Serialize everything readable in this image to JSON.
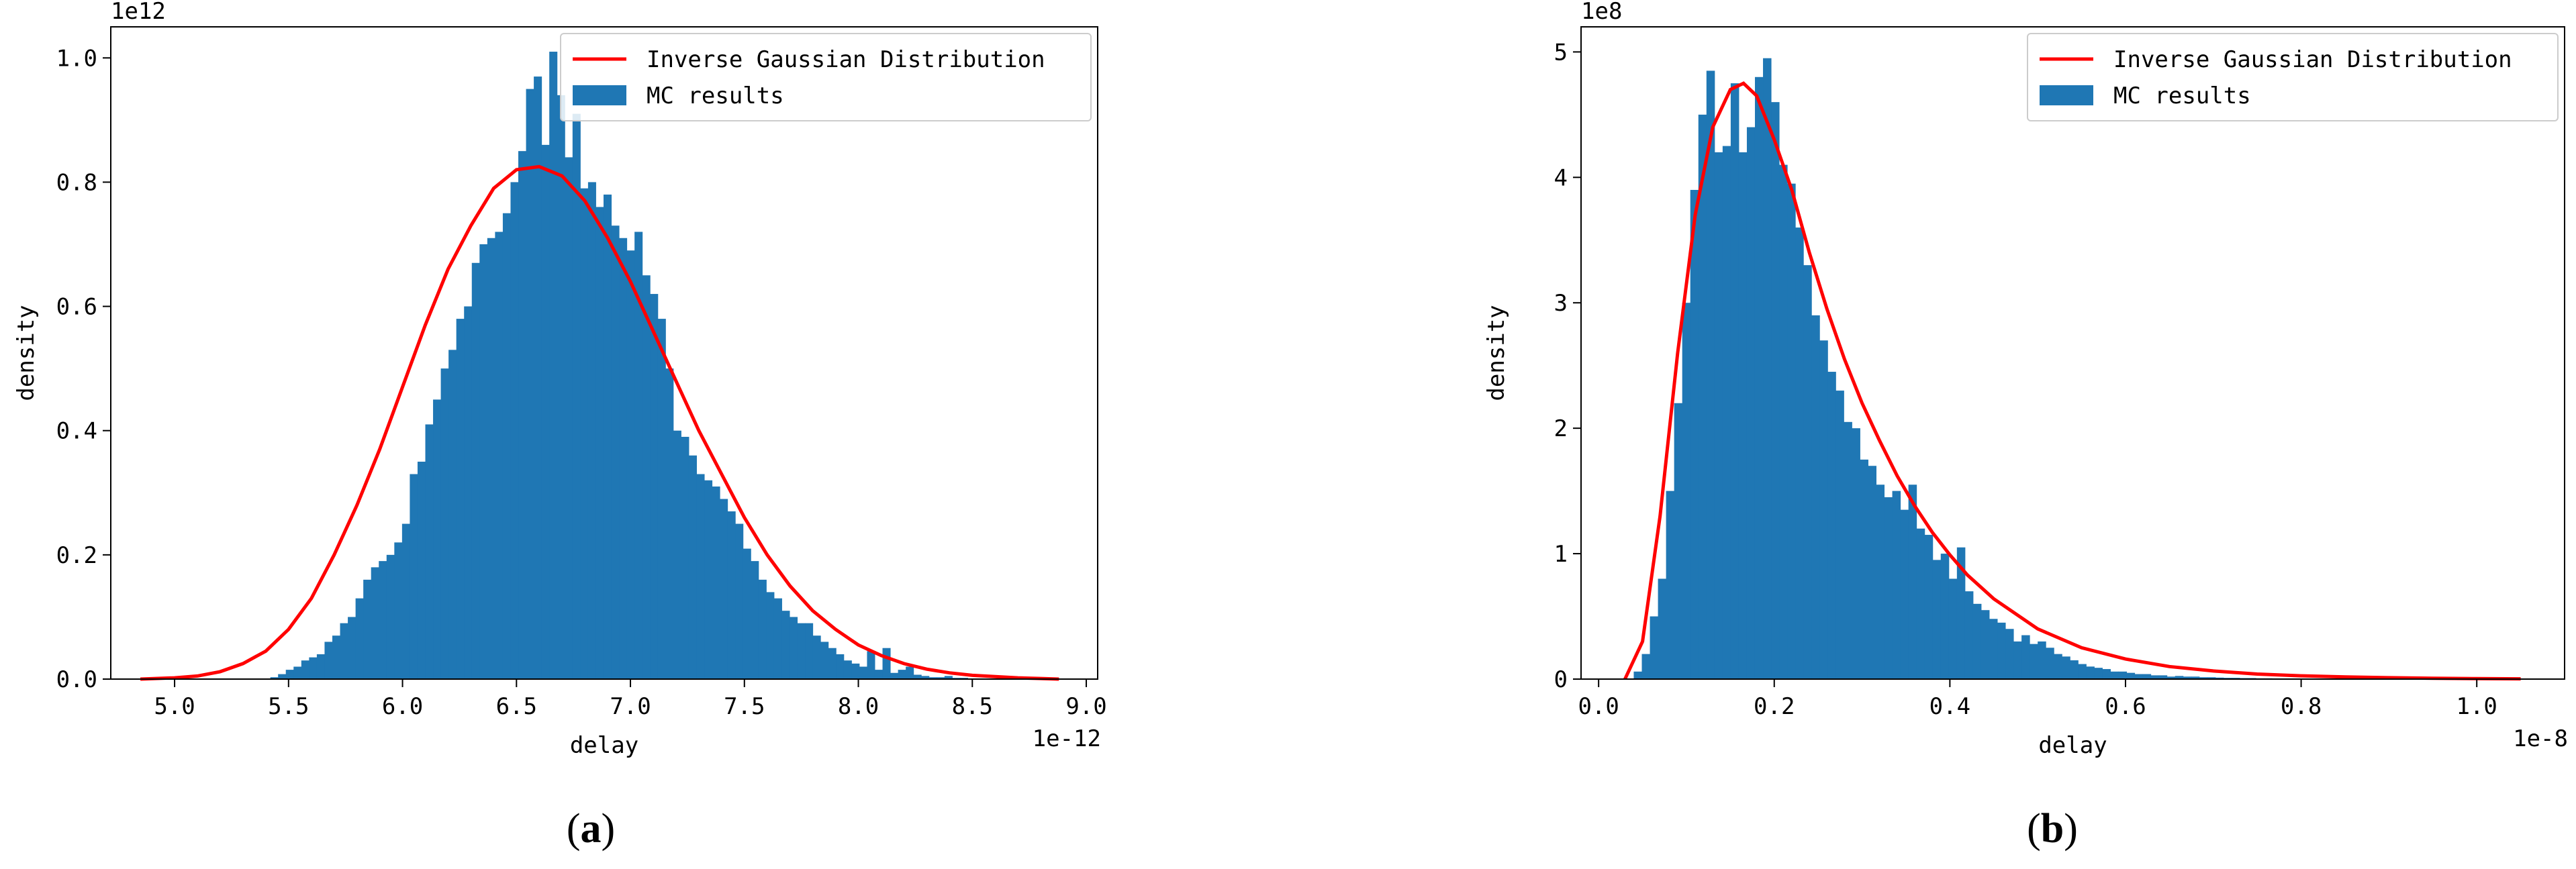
{
  "chart_data": [
    {
      "type": "bar",
      "panel_label": "a",
      "ylabel": "density",
      "xlabel": "delay",
      "x_offset_text": "1e-12",
      "y_offset_text": "1e12",
      "xlim": [
        4.72,
        9.05
      ],
      "ylim": [
        0,
        1.05
      ],
      "xticks": [
        "5.0",
        "5.5",
        "6.0",
        "6.5",
        "7.0",
        "7.5",
        "8.0",
        "8.5",
        "9.0"
      ],
      "xtick_values": [
        5.0,
        5.5,
        6.0,
        6.5,
        7.0,
        7.5,
        8.0,
        8.5,
        9.0
      ],
      "yticks": [
        "0.0",
        "0.2",
        "0.4",
        "0.6",
        "0.8",
        "1.0"
      ],
      "ytick_values": [
        0.0,
        0.2,
        0.4,
        0.6,
        0.8,
        1.0
      ],
      "legend_position": "top-right",
      "legend": {
        "curve": "Inverse Gaussian Distribution",
        "bars": "MC results"
      },
      "histogram": {
        "start": 5.42,
        "bin_width": 0.034,
        "values": [
          0.003,
          0.008,
          0.015,
          0.02,
          0.03,
          0.035,
          0.04,
          0.06,
          0.07,
          0.09,
          0.1,
          0.13,
          0.16,
          0.18,
          0.19,
          0.2,
          0.22,
          0.25,
          0.33,
          0.35,
          0.41,
          0.45,
          0.5,
          0.53,
          0.58,
          0.6,
          0.67,
          0.7,
          0.71,
          0.72,
          0.75,
          0.8,
          0.85,
          0.95,
          0.97,
          0.86,
          1.01,
          0.94,
          0.84,
          0.91,
          0.79,
          0.8,
          0.76,
          0.78,
          0.73,
          0.71,
          0.69,
          0.72,
          0.65,
          0.62,
          0.58,
          0.5,
          0.4,
          0.39,
          0.36,
          0.33,
          0.32,
          0.31,
          0.29,
          0.27,
          0.25,
          0.21,
          0.19,
          0.16,
          0.14,
          0.13,
          0.11,
          0.1,
          0.09,
          0.09,
          0.07,
          0.06,
          0.05,
          0.04,
          0.03,
          0.025,
          0.02,
          0.045,
          0.015,
          0.05,
          0.01,
          0.015,
          0.02,
          0.007,
          0.005,
          0.003,
          0.003,
          0.005,
          0.002,
          0.002
        ]
      },
      "curve": {
        "x": [
          4.85,
          5.0,
          5.1,
          5.2,
          5.3,
          5.4,
          5.5,
          5.6,
          5.7,
          5.8,
          5.9,
          6.0,
          6.1,
          6.2,
          6.3,
          6.4,
          6.5,
          6.6,
          6.7,
          6.8,
          6.9,
          7.0,
          7.1,
          7.2,
          7.3,
          7.4,
          7.5,
          7.6,
          7.7,
          7.8,
          7.9,
          8.0,
          8.1,
          8.2,
          8.3,
          8.4,
          8.5,
          8.6,
          8.7,
          8.8,
          8.88
        ],
        "y": [
          0.0,
          0.002,
          0.005,
          0.012,
          0.025,
          0.045,
          0.08,
          0.13,
          0.2,
          0.28,
          0.37,
          0.47,
          0.57,
          0.66,
          0.73,
          0.79,
          0.82,
          0.825,
          0.81,
          0.77,
          0.71,
          0.64,
          0.56,
          0.48,
          0.4,
          0.33,
          0.26,
          0.2,
          0.15,
          0.11,
          0.08,
          0.055,
          0.038,
          0.025,
          0.016,
          0.01,
          0.006,
          0.004,
          0.002,
          0.001,
          0.0
        ]
      }
    },
    {
      "type": "bar",
      "panel_label": "b",
      "ylabel": "density",
      "xlabel": "delay",
      "x_offset_text": "1e-8",
      "y_offset_text": "1e8",
      "xlim": [
        -0.02,
        1.1
      ],
      "ylim": [
        0,
        5.2
      ],
      "xticks": [
        "0.0",
        "0.2",
        "0.4",
        "0.6",
        "0.8",
        "1.0"
      ],
      "xtick_values": [
        0.0,
        0.2,
        0.4,
        0.6,
        0.8,
        1.0
      ],
      "yticks": [
        "0",
        "1",
        "2",
        "3",
        "4",
        "5"
      ],
      "ytick_values": [
        0,
        1,
        2,
        3,
        4,
        5
      ],
      "legend_position": "top-right",
      "legend": {
        "curve": "Inverse Gaussian Distribution",
        "bars": "MC results"
      },
      "histogram": {
        "start": 0.04,
        "bin_width": 0.0092,
        "values": [
          0.06,
          0.2,
          0.5,
          0.8,
          1.5,
          2.2,
          3.0,
          3.9,
          4.5,
          4.85,
          4.2,
          4.25,
          4.75,
          4.2,
          4.4,
          4.8,
          4.95,
          4.6,
          4.1,
          3.95,
          3.6,
          3.3,
          2.9,
          2.7,
          2.45,
          2.3,
          2.05,
          2.0,
          1.75,
          1.7,
          1.55,
          1.45,
          1.5,
          1.35,
          1.55,
          1.2,
          1.15,
          0.95,
          1.0,
          0.8,
          1.05,
          0.7,
          0.6,
          0.55,
          0.48,
          0.45,
          0.4,
          0.3,
          0.35,
          0.28,
          0.3,
          0.25,
          0.2,
          0.18,
          0.15,
          0.12,
          0.1,
          0.09,
          0.08,
          0.06,
          0.06,
          0.05,
          0.04,
          0.04,
          0.03,
          0.03,
          0.02,
          0.025,
          0.02,
          0.02,
          0.015,
          0.015,
          0.012,
          0.01,
          0.01,
          0.008,
          0.008,
          0.006,
          0.006,
          0.005,
          0.005,
          0.004,
          0.004,
          0.003,
          0.003,
          0.003,
          0.002,
          0.002,
          0.002,
          0.002,
          0.001,
          0.001,
          0.001,
          0.001,
          0.001,
          0.001,
          0.001,
          0.001,
          0.001,
          0.001,
          0.001,
          0.001,
          0.001,
          0.001,
          0.001,
          0.001,
          0.001,
          0.001,
          0.001
        ]
      },
      "curve": {
        "x": [
          0.03,
          0.05,
          0.07,
          0.09,
          0.11,
          0.13,
          0.15,
          0.165,
          0.18,
          0.2,
          0.22,
          0.24,
          0.26,
          0.28,
          0.3,
          0.32,
          0.34,
          0.36,
          0.38,
          0.4,
          0.42,
          0.45,
          0.5,
          0.55,
          0.6,
          0.65,
          0.7,
          0.75,
          0.8,
          0.85,
          0.9,
          0.95,
          1.0,
          1.05
        ],
        "y": [
          0.0,
          0.3,
          1.3,
          2.6,
          3.7,
          4.4,
          4.7,
          4.75,
          4.65,
          4.3,
          3.9,
          3.4,
          2.95,
          2.55,
          2.2,
          1.9,
          1.62,
          1.38,
          1.17,
          0.99,
          0.83,
          0.64,
          0.4,
          0.25,
          0.16,
          0.1,
          0.065,
          0.04,
          0.026,
          0.017,
          0.011,
          0.007,
          0.004,
          0.002
        ]
      }
    }
  ],
  "colors": {
    "bars": "#1f77b4",
    "curve": "#ff0000"
  }
}
